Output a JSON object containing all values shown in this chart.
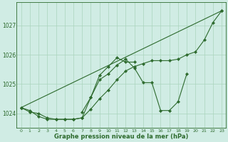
{
  "x": [
    0,
    1,
    2,
    3,
    4,
    5,
    6,
    7,
    8,
    9,
    10,
    11,
    12,
    13,
    14,
    15,
    16,
    17,
    18,
    19,
    20,
    21,
    22,
    23
  ],
  "line1": [
    1024.2,
    1024.1,
    1023.9,
    1023.8,
    1023.8,
    1023.8,
    1023.8,
    1023.85,
    1024.15,
    1024.5,
    1024.8,
    1025.15,
    1025.45,
    1025.6,
    1025.7,
    1025.8,
    1025.8,
    1025.8,
    1025.85,
    1026.0,
    1026.1,
    1026.5,
    1027.1,
    1027.5
  ],
  "line2": [
    1024.2,
    1024.05,
    1024.0,
    1023.85,
    1023.8,
    1023.8,
    1023.8,
    1023.85,
    1024.55,
    1025.15,
    1025.35,
    1025.65,
    1025.85,
    1025.55,
    1025.05,
    1025.05,
    1024.1,
    1024.1,
    1024.4,
    1025.35,
    null,
    null,
    null,
    null
  ],
  "line3": [
    1024.2,
    null,
    null,
    null,
    null,
    null,
    null,
    null,
    null,
    null,
    null,
    null,
    null,
    null,
    null,
    null,
    null,
    null,
    null,
    null,
    null,
    null,
    null,
    1027.5
  ],
  "line4": [
    null,
    null,
    null,
    null,
    null,
    null,
    null,
    1024.05,
    1024.55,
    1025.3,
    1025.6,
    1025.9,
    1025.75,
    1025.75,
    null,
    null,
    null,
    null,
    null,
    null,
    null,
    null,
    null,
    null
  ],
  "bg_color": "#d0ece4",
  "line_color": "#2d6a2d",
  "grid_color": "#aad4bc",
  "xlabel": "Graphe pression niveau de la mer (hPa)",
  "ylim": [
    1023.5,
    1027.8
  ],
  "yticks": [
    1024,
    1025,
    1026,
    1027
  ],
  "xticks": [
    0,
    1,
    2,
    3,
    4,
    5,
    6,
    7,
    8,
    9,
    10,
    11,
    12,
    13,
    14,
    15,
    16,
    17,
    18,
    19,
    20,
    21,
    22,
    23
  ]
}
